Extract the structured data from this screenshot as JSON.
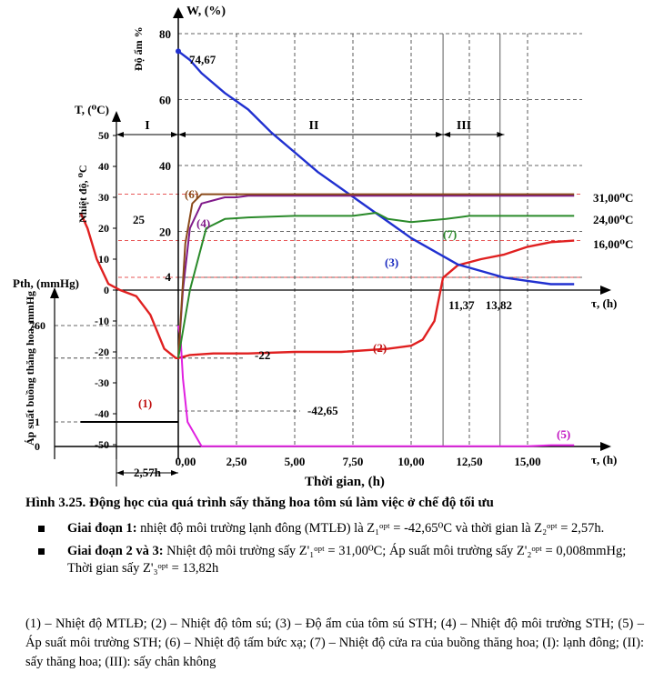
{
  "chart_data": {
    "type": "line",
    "title": "",
    "xlabel": "Thời gian, (h)",
    "x_axis_label_short": "τ, (h)",
    "x_ticks": [
      "0,00",
      "2,50",
      "5,00",
      "7,50",
      "10,00",
      "12,50",
      "15,00"
    ],
    "x_tick_values": [
      0,
      2.5,
      5,
      7.5,
      10,
      12.5,
      15
    ],
    "xlim": [
      -4.2,
      17
    ],
    "extra_x_label": "2,57h",
    "markers_x_labels": [
      "11,37",
      "13,82"
    ],
    "w_axis": {
      "label": "W, (%)",
      "side_label": "Độ ẩm  %",
      "ticks": [
        "80",
        "60",
        "40",
        "20",
        "4"
      ],
      "tick_values": [
        80,
        60,
        40,
        20,
        4
      ],
      "ylim": [
        0,
        80
      ]
    },
    "t_axis": {
      "label": "T, (⁰C)",
      "side_label": "Nhiệt độ, ⁰C",
      "ticks": [
        "50",
        "40",
        "30",
        "20",
        "10",
        "0",
        "-10",
        "-20",
        "-30",
        "-40",
        "-50"
      ],
      "tick_values": [
        50,
        40,
        30,
        20,
        10,
        0,
        -10,
        -20,
        -30,
        -40,
        -50
      ]
    },
    "p_axis": {
      "label": "Pth, (mmHg)",
      "side_label": "Áp suất buồng thăng hoa, mmHg",
      "ticks": [
        "760",
        "1",
        "0"
      ]
    },
    "phases": [
      "I",
      "II",
      "III"
    ],
    "annotations": [
      "74,67",
      "25",
      "-22",
      "-42,65",
      "31,00⁰C",
      "24,00⁰C",
      "16,00⁰C",
      "(1)",
      "(2)",
      "(3)",
      "(4)",
      "(5)",
      "(6)",
      "(7)"
    ],
    "series": [
      {
        "name": "(1)",
        "axis": "T",
        "color": "#000000",
        "x": [
          -4.2,
          0
        ],
        "y": [
          -42.65,
          -42.65
        ]
      },
      {
        "name": "(2)",
        "axis": "T",
        "color": "#e02020",
        "x": [
          -4.2,
          -3.9,
          -3.5,
          -3.0,
          -2.5,
          -1.8,
          -1.2,
          -0.6,
          -0.1,
          0,
          0.5,
          1.5,
          3,
          5,
          7,
          9,
          10,
          10.5,
          11,
          11.37,
          12,
          13,
          14,
          15,
          16,
          17
        ],
        "y": [
          25,
          20,
          10,
          2,
          0,
          -2,
          -8,
          -19,
          -22,
          -22,
          -21,
          -20.5,
          -20.5,
          -20,
          -20,
          -19,
          -18,
          -16,
          -10,
          4,
          8,
          10,
          11.5,
          14,
          15.5,
          16
        ]
      },
      {
        "name": "(3)",
        "axis": "W",
        "color": "#2030d0",
        "x": [
          0,
          0.5,
          1,
          2,
          3,
          4,
          5,
          6,
          7,
          8,
          9,
          10,
          11,
          12,
          13,
          14,
          15,
          16,
          17
        ],
        "y": [
          74.67,
          72,
          68,
          62,
          57,
          50,
          44,
          38,
          33,
          28,
          23,
          18,
          14,
          10,
          8,
          6,
          5,
          4,
          4
        ]
      },
      {
        "name": "(4)",
        "axis": "T",
        "color": "#801a8a",
        "x": [
          0,
          0.2,
          0.5,
          1,
          1.5,
          2,
          2.5,
          3,
          5,
          10,
          15,
          17
        ],
        "y": [
          -22,
          0,
          20,
          28,
          29,
          30,
          30,
          30.5,
          30.5,
          30.5,
          30.5,
          30.5
        ]
      },
      {
        "name": "(5)",
        "axis": "P",
        "color": "#e020e0",
        "x": [
          0,
          0.1,
          0.2,
          0.4,
          1,
          5,
          10,
          15,
          16,
          17
        ],
        "y": [
          760,
          300,
          20,
          1,
          0.01,
          0.01,
          0.01,
          0.01,
          0.05,
          0.05
        ]
      },
      {
        "name": "(6)",
        "axis": "T",
        "color": "#8a4a1a",
        "x": [
          0,
          0.3,
          0.6,
          1,
          2,
          3,
          5,
          10,
          15,
          17
        ],
        "y": [
          -22,
          15,
          28,
          31,
          31,
          31,
          31,
          31,
          31,
          31
        ]
      },
      {
        "name": "(7)",
        "axis": "T",
        "color": "#2a8a2a",
        "x": [
          0,
          0.5,
          1.2,
          2,
          3,
          5,
          7.5,
          8.5,
          9,
          10,
          11.5,
          12.5,
          15,
          17
        ],
        "y": [
          -22,
          0,
          20,
          23,
          23.5,
          24,
          24,
          25,
          23,
          22,
          23,
          24,
          24,
          24
        ]
      }
    ]
  },
  "caption": "Hình 3.25. Động học của quá trình sấy thăng hoa tôm sú làm việc ở chế độ tối ưu",
  "bullets": [
    {
      "bold": "Giai đoạn 1:",
      "text": " nhiệt độ môi trường lạnh đông (MTLĐ) là Z₁ᵒᵖᵗ = -42,65⁰C và thời gian là Z₂ᵒᵖᵗ = 2,57h."
    },
    {
      "bold": "Giai đoạn 2 và 3:",
      "text": " Nhiệt độ môi trường sấy Z'₁ᵒᵖᵗ = 31,00⁰C; Áp suất môi trường sấy Z'₂ᵒᵖᵗ = 0,008mmHg; Thời gian sấy Z'₃ᵒᵖᵗ = 13,82h"
    }
  ],
  "legend_note": "(1) – Nhiệt độ MTLĐ; (2) – Nhiệt độ tôm sú; (3) – Độ ẩm của tôm sú STH; (4) – Nhiệt độ môi trường STH; (5) – Áp suất môi trường STH; (6) – Nhiệt độ tấm bức xạ; (7) – Nhiệt độ cửa ra của buồng thăng hoa; (I): lạnh đông; (II): sấy thăng hoa; (III): sấy chân không"
}
